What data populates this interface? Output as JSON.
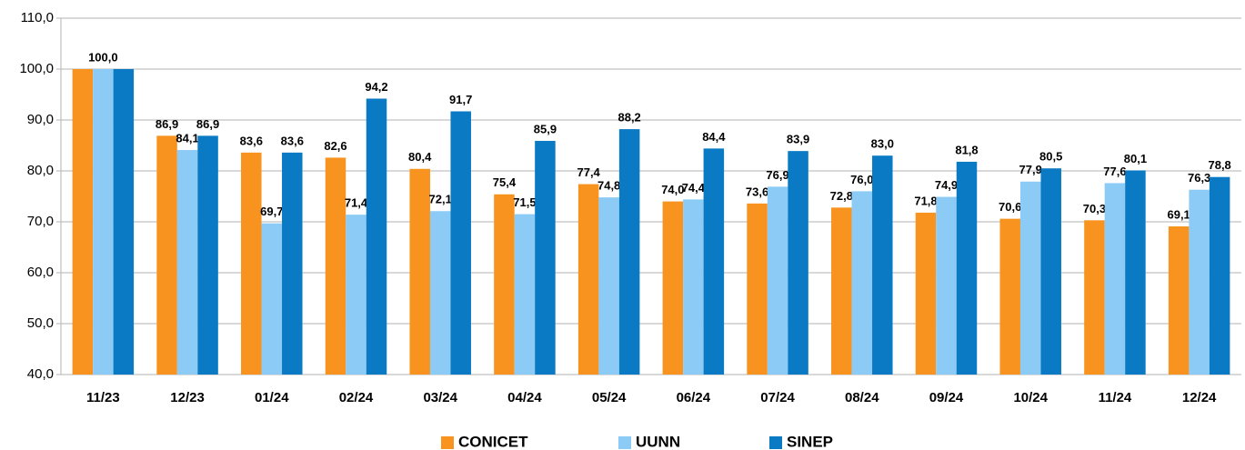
{
  "chart_data": {
    "type": "bar",
    "categories": [
      "11/23",
      "12/23",
      "01/24",
      "02/24",
      "03/24",
      "04/24",
      "05/24",
      "06/24",
      "07/24",
      "08/24",
      "09/24",
      "10/24",
      "11/24",
      "12/24"
    ],
    "series": [
      {
        "name": "CONICET",
        "color": "#f7931e",
        "values": [
          100.0,
          86.9,
          83.6,
          82.6,
          80.4,
          75.4,
          77.4,
          74.0,
          73.6,
          72.8,
          71.8,
          70.6,
          70.3,
          69.1
        ],
        "value_labels": [
          null,
          "86,9",
          "83,6",
          "82,6",
          "80,4",
          "75,4",
          "77,4",
          "74,0",
          "73,6",
          "72,8",
          "71,8",
          "70,6",
          "70,3",
          "69,1"
        ]
      },
      {
        "name": "UUNN",
        "color": "#8ccbf5",
        "values": [
          100.0,
          84.1,
          69.7,
          71.4,
          72.1,
          71.5,
          74.8,
          74.4,
          76.9,
          76.0,
          74.9,
          77.9,
          77.6,
          76.3
        ],
        "value_labels": [
          "100,0",
          "84,1",
          "69,7",
          "71,4",
          "72,1",
          "71,5",
          "74,8",
          "74,4",
          "76,9",
          "76,0",
          "74,9",
          "77,9",
          "77,6",
          "76,3"
        ]
      },
      {
        "name": "SINEP",
        "color": "#0a7ac4",
        "values": [
          100.0,
          86.9,
          83.6,
          94.2,
          91.7,
          85.9,
          88.2,
          84.4,
          83.9,
          83.0,
          81.8,
          80.5,
          80.1,
          78.8
        ],
        "value_labels": [
          null,
          "86,9",
          "83,6",
          "94,2",
          "91,7",
          "85,9",
          "88,2",
          "84,4",
          "83,9",
          "83,0",
          "81,8",
          "80,5",
          "80,1",
          "78,8"
        ]
      }
    ],
    "ylim": [
      40,
      110
    ],
    "yticks": [
      {
        "value": 40,
        "label": "40,0"
      },
      {
        "value": 50,
        "label": "50,0"
      },
      {
        "value": 60,
        "label": "60,0"
      },
      {
        "value": 70,
        "label": "70,0"
      },
      {
        "value": 80,
        "label": "80,0"
      },
      {
        "value": 90,
        "label": "90,0"
      },
      {
        "value": 100,
        "label": "100,0"
      },
      {
        "value": 110,
        "label": "110,0"
      }
    ],
    "grid": true,
    "legend": "bottom"
  }
}
